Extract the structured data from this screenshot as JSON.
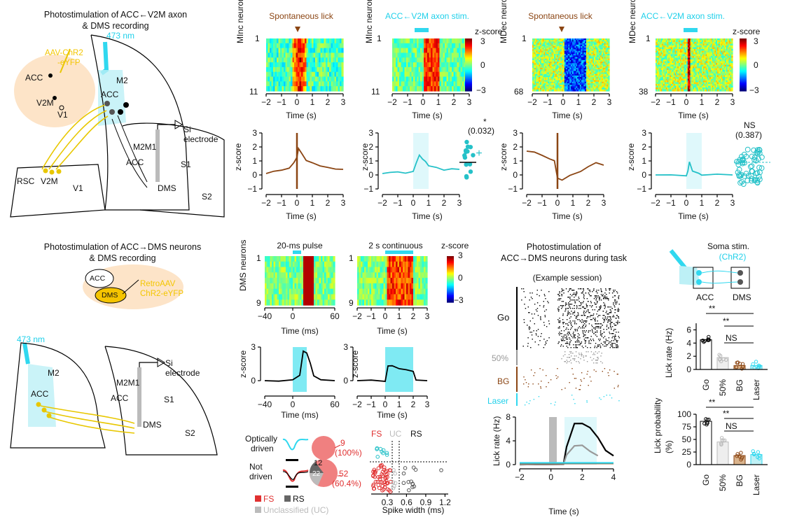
{
  "panels": {
    "a_title_1": "Photostimulation of ACC←V2M axon",
    "a_title_2": "& DMS recording",
    "a_virus_1": "AAV-ChR2",
    "a_virus_2": "-eYFP",
    "laser_label": "473 nm",
    "si_electrode_1": "Si",
    "si_electrode_2": "electrode",
    "brain_acc": "ACC",
    "brain_v2m": "V2M",
    "brain_v1": "V1",
    "brain_m2": "M2",
    "brain_m2m1": "M2M1",
    "brain_s1": "S1",
    "brain_s2": "S2",
    "brain_dms": "DMS",
    "brain_rsc": "RSC",
    "d_title_1": "Photostimulation of ACC→DMS neurons",
    "d_title_2": "& DMS recording",
    "d_virus_1": "RetroAAV",
    "d_virus_2": "ChR2-eYFP",
    "f_title_1": "Photostimulation of",
    "f_title_2": "ACC→DMS neurons during task",
    "f_example": "(Example session)",
    "f_go": "Go",
    "f_50": "50%",
    "f_bg": "BG",
    "f_laser": "Laser",
    "g_title": "Soma stim.",
    "g_chr2": "(ChR2)",
    "g_acc": "ACC",
    "g_dms": "DMS"
  },
  "heatmaps": {
    "h1_title": "Spontaneous lick",
    "h2_title": "ACC←V2M axon stim.",
    "h3_title": "Spontaneous lick",
    "h4_title": "ACC←V2M axon stim.",
    "minc_label": "MInc neurons",
    "mdec_label": "MDec neurons",
    "dms_label": "DMS neurons",
    "zscore": "z-score",
    "time_s": "Time (s)",
    "time_ms": "Time (ms)",
    "h5_title": "20-ms pulse",
    "h6_title": "2 s continuous",
    "top_1": "1",
    "minc_n": "11",
    "mdec_n": "68",
    "mdec2_n": "38",
    "dms_n": "9",
    "cbar_hi": "3",
    "cbar_mid": "0",
    "cbar_lo": "−3"
  },
  "stats": {
    "star": "*",
    "p_inc": "(0.032)",
    "ns": "NS",
    "p_dec": "(0.387)",
    "sig2": "**"
  },
  "classification": {
    "optically": "Optically",
    "driven": "driven",
    "not": "Not",
    "not_driven": "driven",
    "opt_count": "9",
    "opt_pct": "(100%)",
    "not_rs": "12",
    "not_uc": "22",
    "not_fs": "52",
    "not_pct": "(60.4%)",
    "legend_fs": "FS",
    "legend_rs": "RS",
    "legend_uc": "Unclassified (UC)",
    "scat_fs": "FS",
    "scat_uc": "UC",
    "scat_rs": "RS",
    "scat_xlabel": "Spike width (ms)"
  },
  "chart_data": [
    {
      "type": "line",
      "name": "spont-lick-inc",
      "title": "",
      "xlabel": "Time (s)",
      "ylabel": "z-score",
      "xlim": [
        -2,
        3
      ],
      "ylim": [
        -1,
        3
      ],
      "x": [
        -2,
        -1.5,
        -1,
        -0.5,
        -0.2,
        0,
        0.1,
        0.3,
        0.6,
        1,
        1.5,
        2,
        2.5,
        3
      ],
      "y": [
        0.1,
        0.2,
        0.3,
        0.5,
        0.8,
        1.2,
        1.9,
        1.5,
        1.1,
        0.8,
        0.7,
        0.5,
        0.4,
        0.4
      ]
    },
    {
      "type": "line",
      "name": "axon-stim-inc",
      "xlabel": "Time (s)",
      "ylabel": "z-score",
      "xlim": [
        -2,
        3
      ],
      "ylim": [
        -1,
        3
      ],
      "x": [
        -2,
        -1.5,
        -1,
        -0.5,
        0,
        0.2,
        0.4,
        0.6,
        0.8,
        1,
        1.5,
        2,
        2.5,
        3
      ],
      "y": [
        0.1,
        0.2,
        0.2,
        0.2,
        0.3,
        0.9,
        1.4,
        1.2,
        1.0,
        0.7,
        0.5,
        0.4,
        0.5,
        0.4
      ]
    },
    {
      "type": "line",
      "name": "spont-lick-dec",
      "xlabel": "Time (s)",
      "ylabel": "z-score",
      "xlim": [
        -2,
        3
      ],
      "ylim": [
        -1,
        3
      ],
      "x": [
        -2,
        -1.5,
        -1,
        -0.5,
        -0.2,
        0,
        0.3,
        0.8,
        1.5,
        2,
        2.5,
        3
      ],
      "y": [
        1.7,
        1.6,
        1.4,
        1.2,
        1.0,
        -0.3,
        -0.4,
        -0.1,
        0.3,
        0.6,
        0.9,
        0.7
      ]
    },
    {
      "type": "line",
      "name": "axon-stim-dec",
      "xlabel": "Time (s)",
      "ylabel": "z-score",
      "xlim": [
        -2,
        3
      ],
      "ylim": [
        -1,
        3
      ],
      "x": [
        -2,
        -1,
        0,
        0.1,
        0.2,
        0.4,
        0.8,
        1,
        2,
        3
      ],
      "y": [
        0,
        0,
        0,
        0.3,
        0.9,
        0.2,
        0.1,
        0,
        0,
        0
      ]
    },
    {
      "type": "line",
      "name": "pulse-20ms",
      "xlabel": "Time (ms)",
      "ylabel": "z-score",
      "xlim": [
        -40,
        60
      ],
      "ylim": [
        0,
        3
      ],
      "x": [
        -40,
        -20,
        0,
        10,
        15,
        20,
        25,
        30,
        40,
        60
      ],
      "y": [
        0,
        0,
        0,
        0.5,
        2.6,
        2.4,
        1.5,
        0.5,
        0.1,
        0
      ]
    },
    {
      "type": "line",
      "name": "continuous-2s",
      "xlabel": "Time (s)",
      "ylabel": "z-score",
      "xlim": [
        -2,
        3
      ],
      "ylim": [
        0,
        3
      ],
      "x": [
        -2,
        -1,
        0,
        0.2,
        0.5,
        1,
        1.5,
        2,
        2.2,
        3
      ],
      "y": [
        0,
        0,
        0,
        1.4,
        1.3,
        1.1,
        1.0,
        0.9,
        0.1,
        0
      ]
    },
    {
      "type": "line",
      "name": "task-lick-rate",
      "xlabel": "Time (s)",
      "ylabel": "Lick rate (Hz)",
      "xlim": [
        -2,
        4
      ],
      "ylim": [
        0,
        8
      ],
      "series": [
        {
          "name": "Go",
          "x": [
            -2,
            0.8,
            1,
            1.5,
            2,
            2.5,
            3,
            3.5,
            4
          ],
          "y": [
            0,
            0,
            3,
            6.8,
            7,
            6.2,
            4.5,
            2.5,
            1.5
          ]
        },
        {
          "name": "50%",
          "x": [
            -2,
            0.8,
            1,
            1.5,
            2,
            2.5,
            3
          ],
          "y": [
            0,
            0,
            1.5,
            3,
            3.2,
            2.4,
            1.5
          ]
        },
        {
          "name": "BG",
          "x": [
            -2,
            4
          ],
          "y": [
            0.2,
            0.2
          ]
        },
        {
          "name": "Laser",
          "x": [
            -2,
            4
          ],
          "y": [
            0.3,
            0.3
          ]
        }
      ]
    },
    {
      "type": "bar",
      "name": "lick-rate",
      "ylabel": "Lick rate (Hz)",
      "categories": [
        "Go",
        "50%",
        "BG",
        "Laser"
      ],
      "values": [
        4.5,
        1.8,
        0.6,
        0.6
      ],
      "ylim": [
        0,
        7
      ],
      "yticks": [
        0,
        2,
        4,
        6
      ]
    },
    {
      "type": "bar",
      "name": "lick-probability",
      "ylabel": "Lick probability (%)",
      "categories": [
        "Go",
        "50%",
        "BG",
        "Laser"
      ],
      "values": [
        86,
        45,
        18,
        20
      ],
      "ylim": [
        0,
        100
      ],
      "yticks": [
        0,
        25,
        50,
        75,
        100
      ]
    },
    {
      "type": "scatter",
      "name": "spike-width",
      "xlabel": "Spike width (ms)",
      "xlim": [
        0,
        1.2
      ],
      "xticks": [
        0,
        0.3,
        0.6,
        0.9,
        1.2
      ]
    }
  ]
}
